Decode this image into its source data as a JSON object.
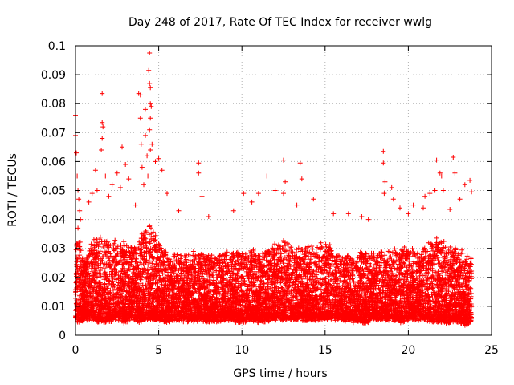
{
  "chart_data": {
    "type": "scatter",
    "title": "Day 248 of 2017, Rate Of TEC Index for receiver wwlg",
    "xlabel": "GPS time / hours",
    "ylabel": "ROTI / TECUs",
    "xlim": [
      0,
      25
    ],
    "ylim": [
      0,
      0.1
    ],
    "x_ticks": [
      0,
      5,
      10,
      15,
      20,
      25
    ],
    "x_tick_labels": [
      "0",
      "5",
      "10",
      "15",
      "20",
      "25"
    ],
    "y_ticks": [
      0,
      0.01,
      0.02,
      0.03,
      0.04,
      0.05,
      0.06,
      0.07,
      0.08,
      0.09,
      0.1
    ],
    "y_tick_labels": [
      "0",
      "0.01",
      "0.02",
      "0.03",
      "0.04",
      "0.05",
      "0.06",
      "0.07",
      "0.08",
      "0.09",
      "0.1"
    ],
    "grid": true,
    "marker": "+",
    "color": "#ff0000",
    "series": [
      {
        "name": "ROTI",
        "envelope": {
          "x": [
            0.0,
            0.2,
            0.5,
            1.0,
            1.5,
            2.0,
            2.5,
            3.0,
            3.5,
            4.0,
            4.5,
            5.0,
            5.5,
            6.0,
            7.0,
            7.5,
            8.0,
            9.0,
            10.0,
            10.5,
            11.0,
            12.0,
            12.5,
            13.0,
            13.5,
            14.0,
            15.0,
            16.0,
            17.0,
            17.5,
            18.0,
            18.5,
            19.0,
            19.5,
            20.0,
            20.5,
            21.0,
            21.5,
            22.0,
            22.5,
            23.0,
            23.5,
            23.8
          ],
          "low": [
            0.006,
            0.005,
            0.006,
            0.006,
            0.005,
            0.005,
            0.006,
            0.005,
            0.006,
            0.005,
            0.006,
            0.006,
            0.005,
            0.006,
            0.005,
            0.006,
            0.005,
            0.006,
            0.005,
            0.006,
            0.005,
            0.006,
            0.006,
            0.006,
            0.006,
            0.006,
            0.006,
            0.006,
            0.005,
            0.005,
            0.006,
            0.006,
            0.006,
            0.005,
            0.006,
            0.006,
            0.006,
            0.005,
            0.005,
            0.005,
            0.005,
            0.004,
            0.005
          ],
          "high": [
            0.03,
            0.035,
            0.025,
            0.032,
            0.034,
            0.032,
            0.033,
            0.032,
            0.03,
            0.035,
            0.038,
            0.032,
            0.028,
            0.027,
            0.028,
            0.029,
            0.027,
            0.028,
            0.029,
            0.031,
            0.027,
            0.031,
            0.033,
            0.031,
            0.03,
            0.031,
            0.032,
            0.027,
            0.028,
            0.029,
            0.028,
            0.03,
            0.029,
            0.029,
            0.03,
            0.028,
            0.031,
            0.033,
            0.033,
            0.03,
            0.029,
            0.028,
            0.026
          ]
        },
        "point_count": 9000,
        "notable_points": [
          {
            "x": 0.0,
            "y": 0.076
          },
          {
            "x": 0.0,
            "y": 0.069
          },
          {
            "x": 0.05,
            "y": 0.063
          },
          {
            "x": 0.1,
            "y": 0.055
          },
          {
            "x": 0.15,
            "y": 0.05
          },
          {
            "x": 0.2,
            "y": 0.047
          },
          {
            "x": 0.25,
            "y": 0.043
          },
          {
            "x": 0.3,
            "y": 0.04
          },
          {
            "x": 0.15,
            "y": 0.037
          },
          {
            "x": 0.8,
            "y": 0.046
          },
          {
            "x": 1.0,
            "y": 0.049
          },
          {
            "x": 1.2,
            "y": 0.057
          },
          {
            "x": 1.3,
            "y": 0.05
          },
          {
            "x": 1.6,
            "y": 0.0835
          },
          {
            "x": 1.6,
            "y": 0.0735
          },
          {
            "x": 1.65,
            "y": 0.072
          },
          {
            "x": 1.6,
            "y": 0.068
          },
          {
            "x": 1.55,
            "y": 0.064
          },
          {
            "x": 1.8,
            "y": 0.055
          },
          {
            "x": 2.0,
            "y": 0.048
          },
          {
            "x": 2.2,
            "y": 0.052
          },
          {
            "x": 2.5,
            "y": 0.056
          },
          {
            "x": 2.7,
            "y": 0.051
          },
          {
            "x": 2.8,
            "y": 0.065
          },
          {
            "x": 3.0,
            "y": 0.059
          },
          {
            "x": 3.2,
            "y": 0.054
          },
          {
            "x": 3.6,
            "y": 0.045
          },
          {
            "x": 3.8,
            "y": 0.0835
          },
          {
            "x": 3.9,
            "y": 0.083
          },
          {
            "x": 3.9,
            "y": 0.075
          },
          {
            "x": 3.95,
            "y": 0.066
          },
          {
            "x": 4.0,
            "y": 0.058
          },
          {
            "x": 4.1,
            "y": 0.052
          },
          {
            "x": 4.2,
            "y": 0.078
          },
          {
            "x": 4.2,
            "y": 0.069
          },
          {
            "x": 4.3,
            "y": 0.062
          },
          {
            "x": 4.35,
            "y": 0.055
          },
          {
            "x": 4.45,
            "y": 0.0975
          },
          {
            "x": 4.4,
            "y": 0.0915
          },
          {
            "x": 4.45,
            "y": 0.087
          },
          {
            "x": 4.5,
            "y": 0.0855
          },
          {
            "x": 4.5,
            "y": 0.08
          },
          {
            "x": 4.55,
            "y": 0.079
          },
          {
            "x": 4.5,
            "y": 0.075
          },
          {
            "x": 4.45,
            "y": 0.071
          },
          {
            "x": 4.6,
            "y": 0.066
          },
          {
            "x": 4.5,
            "y": 0.064
          },
          {
            "x": 4.8,
            "y": 0.06
          },
          {
            "x": 5.0,
            "y": 0.061
          },
          {
            "x": 5.2,
            "y": 0.057
          },
          {
            "x": 5.5,
            "y": 0.049
          },
          {
            "x": 6.2,
            "y": 0.043
          },
          {
            "x": 7.4,
            "y": 0.0595
          },
          {
            "x": 7.4,
            "y": 0.056
          },
          {
            "x": 7.6,
            "y": 0.048
          },
          {
            "x": 8.0,
            "y": 0.041
          },
          {
            "x": 9.5,
            "y": 0.043
          },
          {
            "x": 10.1,
            "y": 0.049
          },
          {
            "x": 10.6,
            "y": 0.046
          },
          {
            "x": 11.0,
            "y": 0.049
          },
          {
            "x": 11.5,
            "y": 0.055
          },
          {
            "x": 12.0,
            "y": 0.05
          },
          {
            "x": 12.5,
            "y": 0.0605
          },
          {
            "x": 12.6,
            "y": 0.053
          },
          {
            "x": 12.5,
            "y": 0.049
          },
          {
            "x": 13.3,
            "y": 0.045
          },
          {
            "x": 13.5,
            "y": 0.0595
          },
          {
            "x": 13.6,
            "y": 0.054
          },
          {
            "x": 14.3,
            "y": 0.047
          },
          {
            "x": 15.5,
            "y": 0.042
          },
          {
            "x": 16.4,
            "y": 0.042
          },
          {
            "x": 17.2,
            "y": 0.041
          },
          {
            "x": 17.6,
            "y": 0.04
          },
          {
            "x": 18.5,
            "y": 0.0635
          },
          {
            "x": 18.5,
            "y": 0.0595
          },
          {
            "x": 18.6,
            "y": 0.053
          },
          {
            "x": 18.55,
            "y": 0.049
          },
          {
            "x": 19.0,
            "y": 0.051
          },
          {
            "x": 19.1,
            "y": 0.047
          },
          {
            "x": 19.5,
            "y": 0.044
          },
          {
            "x": 20.0,
            "y": 0.042
          },
          {
            "x": 20.3,
            "y": 0.045
          },
          {
            "x": 20.9,
            "y": 0.044
          },
          {
            "x": 21.0,
            "y": 0.048
          },
          {
            "x": 21.3,
            "y": 0.049
          },
          {
            "x": 21.6,
            "y": 0.05
          },
          {
            "x": 21.7,
            "y": 0.0605
          },
          {
            "x": 21.9,
            "y": 0.056
          },
          {
            "x": 22.0,
            "y": 0.055
          },
          {
            "x": 22.1,
            "y": 0.05
          },
          {
            "x": 22.5,
            "y": 0.0435
          },
          {
            "x": 22.7,
            "y": 0.0615
          },
          {
            "x": 22.8,
            "y": 0.056
          },
          {
            "x": 23.1,
            "y": 0.047
          },
          {
            "x": 23.4,
            "y": 0.052
          },
          {
            "x": 23.7,
            "y": 0.0535
          },
          {
            "x": 23.8,
            "y": 0.0495
          }
        ]
      }
    ]
  }
}
